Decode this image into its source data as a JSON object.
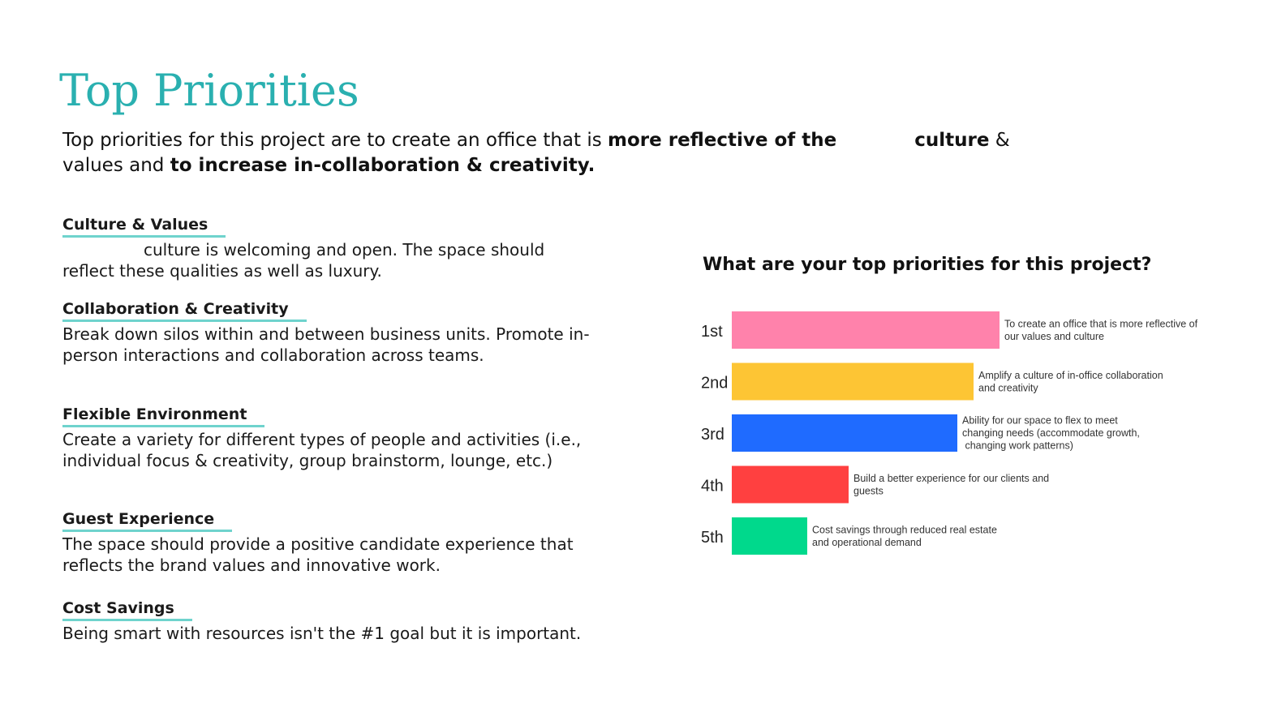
{
  "page": {
    "title": "Top Priorities",
    "intro": {
      "part1": "Top priorities for this project are to create an office that is ",
      "bold1": "more reflective of the",
      "bold2": "culture",
      "part2": " &",
      "part3": "values and ",
      "bold3": "to increase in-collaboration & creativity."
    }
  },
  "sections": [
    {
      "heading": "Culture & Values",
      "body": "culture is welcoming and open. The space should reflect these qualities as well as luxury."
    },
    {
      "heading": "Collaboration & Creativity",
      "body": "Break down silos within and between business units. Promote in-person interactions and collaboration across teams."
    },
    {
      "heading": "Flexible Environment",
      "body": "Create a variety for different types of people and activities (i.e., individual focus & creativity, group brainstorm, lounge, etc.)"
    },
    {
      "heading": "Guest Experience",
      "body": "The space should provide a positive candidate experience that reflects the brand values and innovative work."
    },
    {
      "heading": "Cost Savings",
      "body": "Being smart with resources isn't the #1 goal but it is important."
    }
  ],
  "chart_data": {
    "type": "bar",
    "orientation": "horizontal",
    "title": "What are your top priorities for this project?",
    "categories": [
      "1st",
      "2nd",
      "3rd",
      "4th",
      "5th"
    ],
    "values": [
      330,
      298,
      278,
      144,
      93
    ],
    "labels": [
      [
        "To create an office that is more reflective of",
        "our values and culture"
      ],
      [
        "Amplify a culture of in-office collaboration",
        "and creativity"
      ],
      [
        "Ability for our space to flex to meet",
        "changing needs (accommodate growth,",
        " changing work patterns)"
      ],
      [
        "Build a better experience for our clients and",
        "guests"
      ],
      [
        "Cost savings through reduced real estate",
        "and operational demand"
      ]
    ],
    "colors": [
      "#ff82ab",
      "#fdc534",
      "#1f6bff",
      "#ff4040",
      "#00d98c"
    ],
    "grid": false,
    "legend": "none"
  }
}
